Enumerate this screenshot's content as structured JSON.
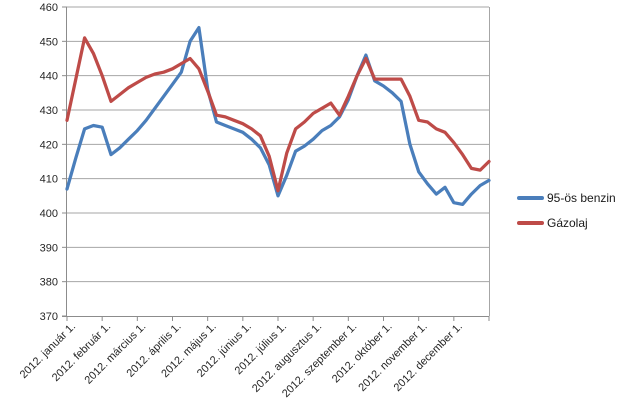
{
  "chart_data": {
    "type": "line",
    "title": "",
    "xlabel": "",
    "ylabel": "",
    "ylim": [
      370,
      460
    ],
    "y_ticks": [
      370,
      380,
      390,
      400,
      410,
      420,
      430,
      440,
      450,
      460
    ],
    "grid": true,
    "legend_position": "right",
    "points_per_month": 4,
    "x_tick_labels": [
      "2012. január 1.",
      "2012. február 1.",
      "2012. március 1.",
      "2012. április 1.",
      "2012. május 1.",
      "2012. június 1.",
      "2012. július 1.",
      "2012. augusztus 1.",
      "2012. szeptember 1.",
      "2012. október 1.",
      "2012. november 1.",
      "2012. december 1."
    ],
    "series": [
      {
        "name": "95-ös benzin",
        "color": "#4A7EBB",
        "values": [
          407,
          416,
          424.5,
          425.5,
          425,
          417,
          419,
          421.5,
          424,
          427,
          430.5,
          434,
          437.5,
          441,
          450,
          454,
          436,
          426.5,
          425.5,
          424.5,
          423.5,
          421.5,
          419,
          414,
          405,
          411,
          418,
          419.5,
          421.5,
          424,
          425.5,
          428,
          433,
          440,
          446,
          438.5,
          437,
          435,
          432.5,
          420,
          412,
          408.5,
          405.5,
          407.5,
          403,
          402.5,
          405.5,
          408,
          409.5
        ]
      },
      {
        "name": "Gázolaj",
        "color": "#BE4B48",
        "values": [
          427,
          439,
          451,
          446.5,
          440,
          432.5,
          434.5,
          436.5,
          438,
          439.5,
          440.5,
          441,
          442,
          443.5,
          445,
          442,
          435.5,
          428.5,
          428,
          427,
          426,
          424.5,
          422.5,
          416.5,
          406.5,
          417.5,
          424.5,
          426.5,
          429,
          430.5,
          432,
          428.5,
          434,
          440,
          445,
          439,
          439,
          439,
          439,
          434,
          427,
          426.5,
          424.5,
          423.5,
          420.5,
          417,
          413,
          412.5,
          415
        ]
      }
    ],
    "axis_colors": {
      "gridline": "#A6A6A6",
      "axis_line": "#8C8C8C",
      "tick_label": "#262626"
    }
  },
  "legend": {
    "items": [
      {
        "label": "95-ös benzin"
      },
      {
        "label": "Gázolaj"
      }
    ]
  }
}
